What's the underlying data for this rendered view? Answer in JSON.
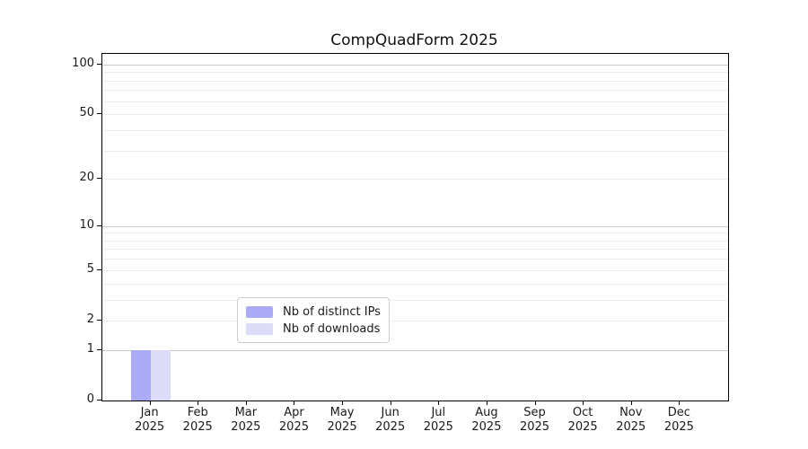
{
  "chart_data": {
    "type": "bar",
    "title": "CompQuadForm 2025",
    "categories": [
      "Jan",
      "Feb",
      "Mar",
      "Apr",
      "May",
      "Jun",
      "Jul",
      "Aug",
      "Sep",
      "Oct",
      "Nov",
      "Dec"
    ],
    "year_label": "2025",
    "series": [
      {
        "name": "Nb of distinct IPs",
        "color": "#aaaaf5",
        "values": [
          1,
          0,
          0,
          0,
          0,
          0,
          0,
          0,
          0,
          0,
          0,
          0
        ]
      },
      {
        "name": "Nb of downloads",
        "color": "#dcdcf8",
        "values": [
          1,
          0,
          0,
          0,
          0,
          0,
          0,
          0,
          0,
          0,
          0,
          0
        ]
      }
    ],
    "yscale": "log1p",
    "ylim": [
      0,
      116
    ],
    "yticks": [
      0,
      1,
      2,
      5,
      10,
      20,
      50,
      100
    ],
    "y_major_gridlines": [
      1,
      10,
      100
    ],
    "y_minor_gridlines": [
      2,
      3,
      4,
      5,
      6,
      7,
      8,
      9,
      20,
      30,
      40,
      50,
      60,
      70,
      80,
      90
    ],
    "grid": "horizontal",
    "legend_position": "lower center",
    "xlabel": "",
    "ylabel": ""
  },
  "colors": {
    "major_grid": "#c9c9c9",
    "minor_grid": "#ededed",
    "spine": "#000000",
    "text": "#1a1a1a",
    "legend_border": "#cccccc"
  }
}
